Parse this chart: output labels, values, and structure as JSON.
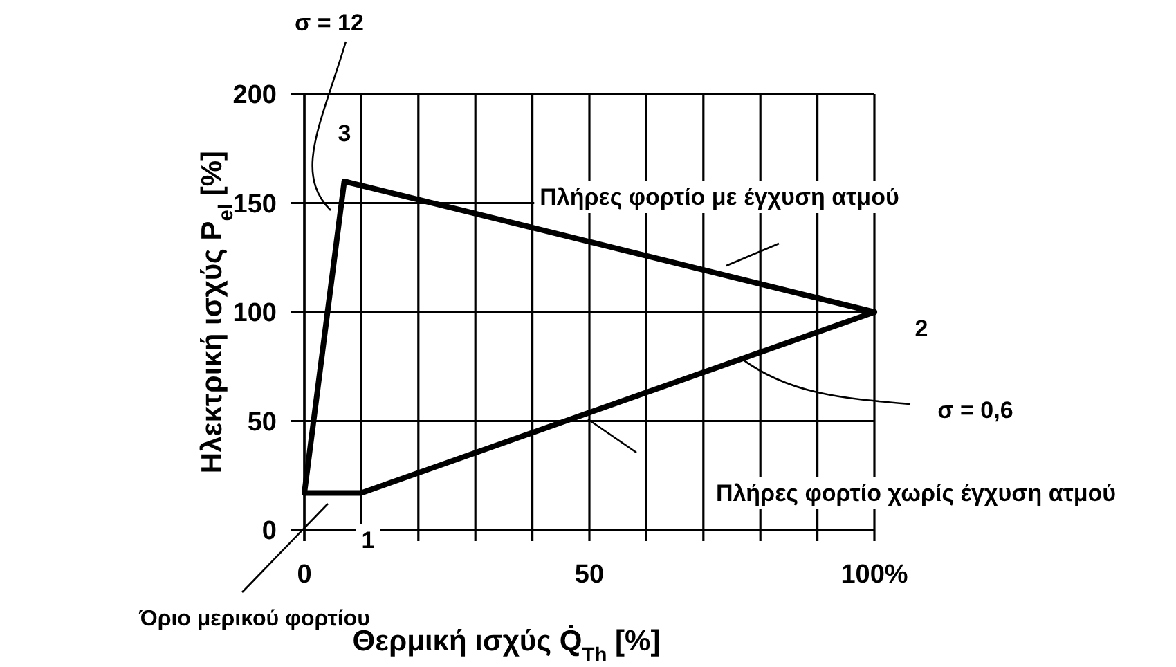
{
  "chart_data": {
    "type": "line",
    "xlabel": "Θερμική ισχύς Q̇$_{Th}$ [%]",
    "ylabel": "Ηλεκτρική ισχύς P$_{el}$ [%]",
    "series": [
      {
        "color": "#000000",
        "x": [
          0,
          10,
          100
        ],
        "values": [
          17,
          17,
          100
        ]
      },
      {
        "color": "#000000",
        "x": [
          0,
          7,
          100
        ],
        "values": [
          17,
          160,
          100
        ]
      }
    ],
    "xlim": [
      0,
      100
    ],
    "xticks": [
      0,
      {
        "value": 10,
        "label": null
      },
      {
        "value": 20,
        "label": null
      },
      {
        "value": 30,
        "label": null
      },
      {
        "value": 40,
        "label": null
      },
      50,
      {
        "value": 60,
        "label": null
      },
      {
        "value": 70,
        "label": null
      },
      {
        "value": 80,
        "label": null
      },
      {
        "value": 90,
        "label": null
      },
      {
        "value": 100,
        "label": "100%"
      }
    ],
    "ylim": [
      0,
      200
    ],
    "yticks": [
      0,
      50,
      100,
      150,
      200
    ],
    "grid": true,
    "marker": "none",
    "line_style": "solid",
    "annotations": [
      "σ = 12",
      "3",
      "Πλήρες φορτίο με έγχυση ατμού",
      "2",
      {
        "text": "σ = 0,6",
        "x": 76.5,
        "y": 79
      },
      "Πλήρες φορτίο χωρίς έγχυση ατμού",
      "1",
      "Όριο μερικού φορτίου"
    ]
  }
}
